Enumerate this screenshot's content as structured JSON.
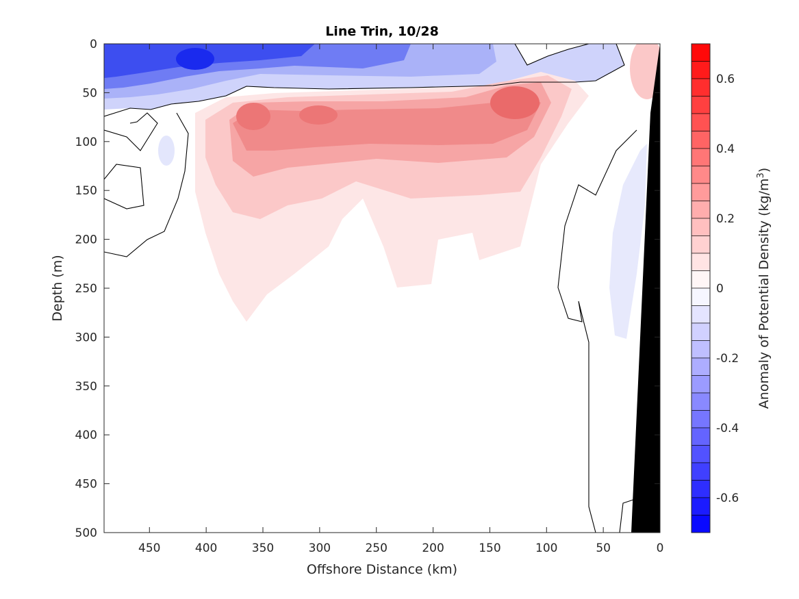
{
  "chart_data": {
    "type": "heatmap",
    "subtype": "filled-contour",
    "title": "Line Trin, 10/28",
    "xlabel": "Offshore Distance (km)",
    "ylabel": "Depth (m)",
    "xlim": [
      490,
      0
    ],
    "ylim": [
      500,
      0
    ],
    "x_reversed": true,
    "y_reversed": true,
    "x_ticks": [
      "450",
      "400",
      "350",
      "300",
      "250",
      "200",
      "150",
      "100",
      "50",
      "0"
    ],
    "x_tick_values": [
      450,
      400,
      350,
      300,
      250,
      200,
      150,
      100,
      50,
      0
    ],
    "y_ticks": [
      "0",
      "50",
      "100",
      "150",
      "200",
      "250",
      "300",
      "350",
      "400",
      "450",
      "500"
    ],
    "y_tick_values": [
      0,
      50,
      100,
      150,
      200,
      250,
      300,
      350,
      400,
      450,
      500
    ],
    "grid": false,
    "colormap": "blue-white-red (diverging)",
    "colorbar": {
      "label_prefix": "Anomaly of Potential Density (kg/m",
      "label_sup": "3",
      "label_suffix": ")",
      "placement": "right",
      "clim": [
        -0.7,
        0.7
      ],
      "levels_step": 0.05,
      "tick_labels": [
        "0.6",
        "0.4",
        "0.2",
        "0",
        "-0.2",
        "-0.4",
        "-0.6"
      ],
      "tick_values": [
        0.6,
        0.4,
        0.2,
        0,
        -0.2,
        -0.4,
        -0.6
      ]
    },
    "features": [
      {
        "kind": "negative-anomaly",
        "x_range": [
          490,
          60
        ],
        "depth_range": [
          0,
          50
        ],
        "min_value": -0.65
      },
      {
        "kind": "positive-anomaly",
        "x_range": [
          370,
          80
        ],
        "depth_range": [
          45,
          280
        ],
        "max_value": 0.35
      },
      {
        "kind": "nearshore-negative",
        "x_range": [
          50,
          25
        ],
        "depth_range": [
          100,
          300
        ],
        "min_value": -0.1
      },
      {
        "kind": "bathymetry",
        "x_range": [
          25,
          0
        ],
        "depth_range": [
          30,
          500
        ],
        "color": "#000000"
      }
    ],
    "zero_contour_color": "#000000"
  }
}
